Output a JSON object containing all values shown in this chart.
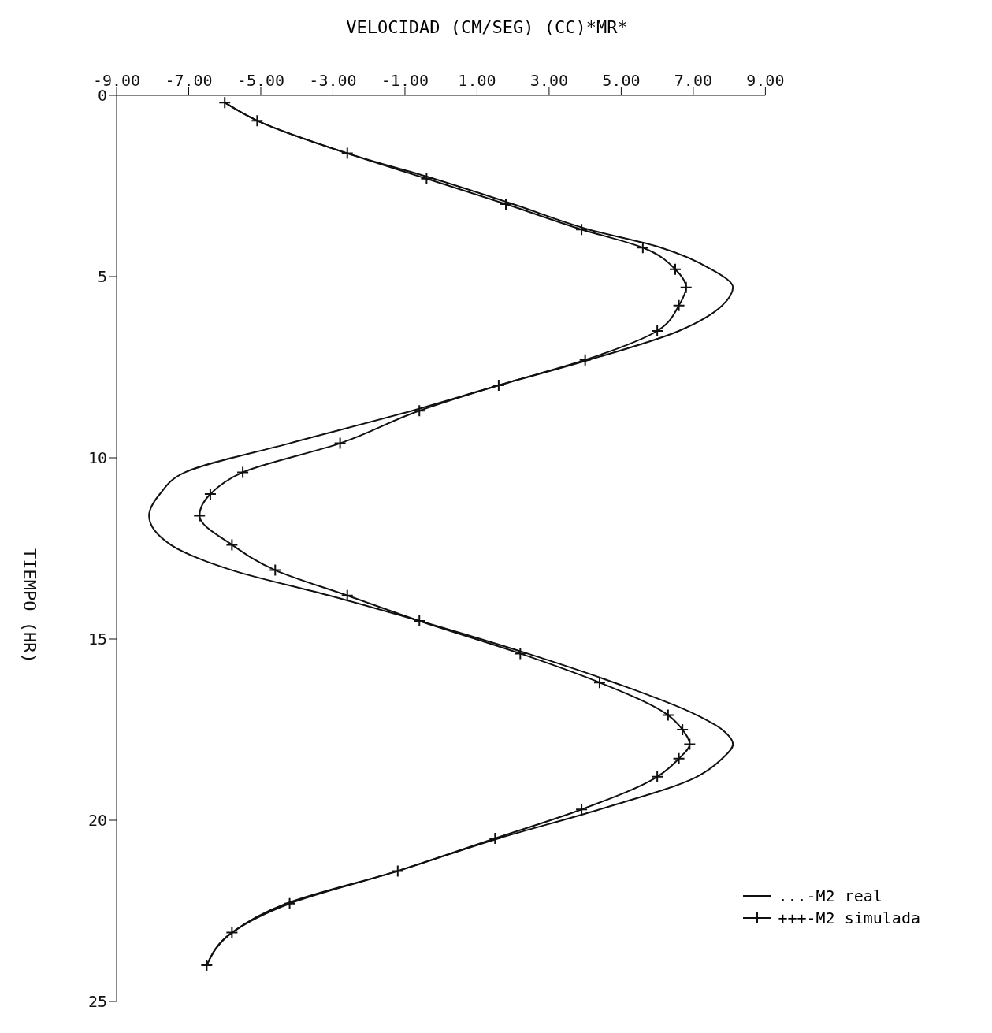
{
  "chart_data": {
    "type": "line",
    "xlabel": "VELOCIDAD (CM/SEG) (CC)*MR*",
    "ylabel": "TIEMPO (HR)",
    "series": [
      {
        "name": "...-M2 real",
        "color": "#111111",
        "marker": "none",
        "line_style": "solid",
        "x": [
          -6.0,
          -5.1,
          -2.6,
          -0.2,
          2.0,
          4.1,
          6.1,
          7.5,
          8.1,
          7.8,
          6.6,
          4.1,
          1.6,
          -0.8,
          -4.2,
          -7.1,
          -7.8,
          -8.1,
          -7.5,
          -5.8,
          -3.1,
          -0.6,
          2.4,
          4.8,
          7.1,
          7.8,
          8.1,
          7.8,
          7.1,
          4.4,
          1.6,
          -1.2,
          -4.3,
          -5.8,
          -6.5
        ],
        "values": [
          0.2,
          0.7,
          1.6,
          2.3,
          3.0,
          3.7,
          4.2,
          4.8,
          5.3,
          5.8,
          6.5,
          7.3,
          8.0,
          8.7,
          9.6,
          10.4,
          11.0,
          11.6,
          12.4,
          13.1,
          13.8,
          14.5,
          15.4,
          16.2,
          17.1,
          17.5,
          17.9,
          18.3,
          18.8,
          19.7,
          20.5,
          21.4,
          22.3,
          23.1,
          24.0
        ]
      },
      {
        "name": "+++-M2 simulada",
        "color": "#111111",
        "marker": "cross",
        "line_style": "solid",
        "x": [
          -6.0,
          -5.1,
          -2.6,
          -0.4,
          1.8,
          3.9,
          5.6,
          6.5,
          6.8,
          6.6,
          6.0,
          4.0,
          1.6,
          -0.6,
          -2.8,
          -5.5,
          -6.4,
          -6.7,
          -5.8,
          -4.6,
          -2.6,
          -0.6,
          2.2,
          4.4,
          6.3,
          6.7,
          6.9,
          6.6,
          6.0,
          3.9,
          1.5,
          -1.2,
          -4.2,
          -5.8,
          -6.5
        ],
        "values": [
          0.2,
          0.7,
          1.6,
          2.3,
          3.0,
          3.7,
          4.2,
          4.8,
          5.3,
          5.8,
          6.5,
          7.3,
          8.0,
          8.7,
          9.6,
          10.4,
          11.0,
          11.6,
          12.4,
          13.1,
          13.8,
          14.5,
          15.4,
          16.2,
          17.1,
          17.5,
          17.9,
          18.3,
          18.8,
          19.7,
          20.5,
          21.4,
          22.3,
          23.1,
          24.0
        ]
      }
    ],
    "ylim": [
      25,
      0
    ],
    "yticks": [
      0,
      5,
      10,
      15,
      20,
      25
    ],
    "xlim": [
      -9,
      9
    ],
    "xticks": [
      {
        "value": -9,
        "label": "-9.00"
      },
      {
        "value": -7,
        "label": "-7.00"
      },
      {
        "value": -5,
        "label": "-5.00"
      },
      {
        "value": -3,
        "label": "-3.00"
      },
      {
        "value": -1,
        "label": "-1.00"
      },
      {
        "value": 1,
        "label": "1.00"
      },
      {
        "value": 3,
        "label": "3.00"
      },
      {
        "value": 5,
        "label": "5.00"
      },
      {
        "value": 7,
        "label": "7.00"
      },
      {
        "value": 9,
        "label": "9.00"
      }
    ],
    "grid": false,
    "legend": "bottom right"
  }
}
